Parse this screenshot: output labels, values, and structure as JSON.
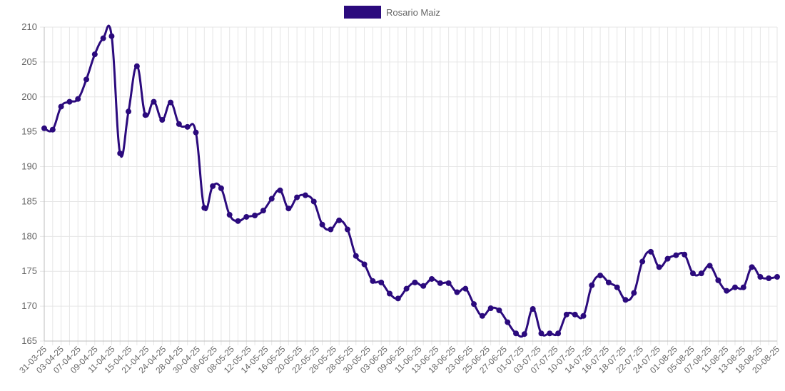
{
  "chart_data": {
    "type": "line",
    "title": "",
    "xlabel": "",
    "ylabel": "",
    "ylim": [
      165,
      210
    ],
    "y_ticks": [
      165,
      170,
      175,
      180,
      185,
      190,
      195,
      200,
      205,
      210
    ],
    "grid": true,
    "legend_position": "top-center",
    "x_tick_labels": [
      "31-03-25",
      "03-04-25",
      "07-04-25",
      "09-04-25",
      "11-04-25",
      "15-04-25",
      "21-04-25",
      "24-04-25",
      "28-04-25",
      "30-04-25",
      "06-05-25",
      "08-05-25",
      "12-05-25",
      "14-05-25",
      "16-05-25",
      "20-05-25",
      "22-05-25",
      "26-05-25",
      "28-05-25",
      "30-05-25",
      "03-06-25",
      "09-06-25",
      "11-06-25",
      "13-06-25",
      "18-06-25",
      "23-06-25",
      "25-06-25",
      "27-06-25",
      "01-07-25",
      "03-07-25",
      "07-07-25",
      "10-07-25",
      "14-07-25",
      "16-07-25",
      "18-07-25",
      "22-07-25",
      "24-07-25",
      "01-08-25",
      "05-08-25",
      "07-08-25",
      "11-08-25",
      "13-08-25",
      "18-08-25",
      "20-08-25"
    ],
    "series": [
      {
        "name": "Rosario Maiz",
        "color": "#2b0a7d",
        "values": [
          195.5,
          195.3,
          198.6,
          199.3,
          199.7,
          202.5,
          206.1,
          208.4,
          208.7,
          191.9,
          197.9,
          204.4,
          197.4,
          199.3,
          196.7,
          199.2,
          196.1,
          195.7,
          194.9,
          184.1,
          187.2,
          186.9,
          183.1,
          182.2,
          182.8,
          183.0,
          183.7,
          185.4,
          186.6,
          184.0,
          185.6,
          185.9,
          185.0,
          181.7,
          181.0,
          182.3,
          181.0,
          177.2,
          176.0,
          173.6,
          173.4,
          171.8,
          171.1,
          172.5,
          173.4,
          172.9,
          173.9,
          173.3,
          173.3,
          172.0,
          172.5,
          170.3,
          168.6,
          169.7,
          169.4,
          167.7,
          166.1,
          166.0,
          169.6,
          166.1,
          166.1,
          166.1,
          168.8,
          168.8,
          168.6,
          173.0,
          174.4,
          173.4,
          172.7,
          170.9,
          171.9,
          176.4,
          177.8,
          175.6,
          176.8,
          177.3,
          177.4,
          174.7,
          174.7,
          175.8,
          173.7,
          172.2,
          172.7,
          172.7,
          175.6,
          174.2,
          174.0,
          174.2
        ]
      }
    ]
  }
}
